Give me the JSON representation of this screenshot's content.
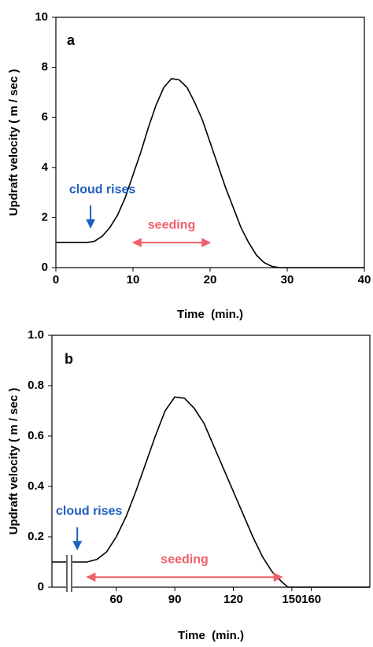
{
  "chart_data": [
    {
      "type": "line",
      "panel_label": "a",
      "x_label": "Time  (min.)",
      "y_label": "Updraft velocity ( m / sec )",
      "xlim": [
        0,
        40
      ],
      "ylim": [
        0,
        10
      ],
      "xticks": [
        0,
        10,
        20,
        30,
        40
      ],
      "yticks": [
        0,
        2,
        4,
        6,
        8,
        10
      ],
      "series": [
        {
          "color": "#000000",
          "x": [
            0,
            2,
            4,
            5,
            6,
            7,
            8,
            9,
            10,
            11,
            12,
            13,
            14,
            15,
            16,
            17,
            18,
            19,
            20,
            21,
            22,
            23,
            24,
            25,
            26,
            27,
            28,
            29,
            30,
            35,
            40
          ],
          "values": [
            1,
            1,
            1,
            1.05,
            1.25,
            1.6,
            2.1,
            2.8,
            3.7,
            4.6,
            5.6,
            6.5,
            7.2,
            7.55,
            7.5,
            7.2,
            6.6,
            5.9,
            5.0,
            4.1,
            3.2,
            2.4,
            1.6,
            1.0,
            0.5,
            0.2,
            0.05,
            0,
            0,
            0,
            0
          ]
        }
      ],
      "annotations": [
        {
          "text": "cloud rises",
          "color": "#1f5fbf",
          "x": 4.5,
          "y": 1.6
        },
        {
          "text": "seeding",
          "color": "#f0606a",
          "x": [
            10,
            20
          ],
          "y": 1.0
        }
      ]
    },
    {
      "type": "line",
      "panel_label": "b",
      "x_label": "Time  (min.)",
      "y_label": "Updraft velocity ( m / sec )",
      "xlim": [
        27,
        190
      ],
      "ylim": [
        0,
        1.0
      ],
      "xticks": [
        60,
        90,
        120,
        150,
        160
      ],
      "yticks": [
        0,
        0.2,
        0.4,
        0.6,
        0.8,
        {
          "value": 1.0,
          "label": "1.0"
        }
      ],
      "series": [
        {
          "color": "#000000",
          "x": [
            27,
            35,
            45,
            50,
            55,
            60,
            65,
            70,
            75,
            80,
            85,
            90,
            95,
            100,
            105,
            110,
            115,
            120,
            125,
            130,
            135,
            140,
            145,
            148,
            160,
            175,
            190
          ],
          "values": [
            0.1,
            0.1,
            0.1,
            0.11,
            0.14,
            0.2,
            0.28,
            0.38,
            0.49,
            0.6,
            0.7,
            0.755,
            0.75,
            0.71,
            0.65,
            0.56,
            0.47,
            0.38,
            0.29,
            0.2,
            0.12,
            0.06,
            0.02,
            0,
            0,
            0,
            0
          ]
        }
      ],
      "annotations": [
        {
          "text": "cloud rises",
          "color": "#1f5fbf",
          "x": 40,
          "y": 0.15
        },
        {
          "text": "seeding",
          "color": "#f0606a",
          "x": [
            45,
            145
          ],
          "y": 0.04
        }
      ]
    }
  ]
}
